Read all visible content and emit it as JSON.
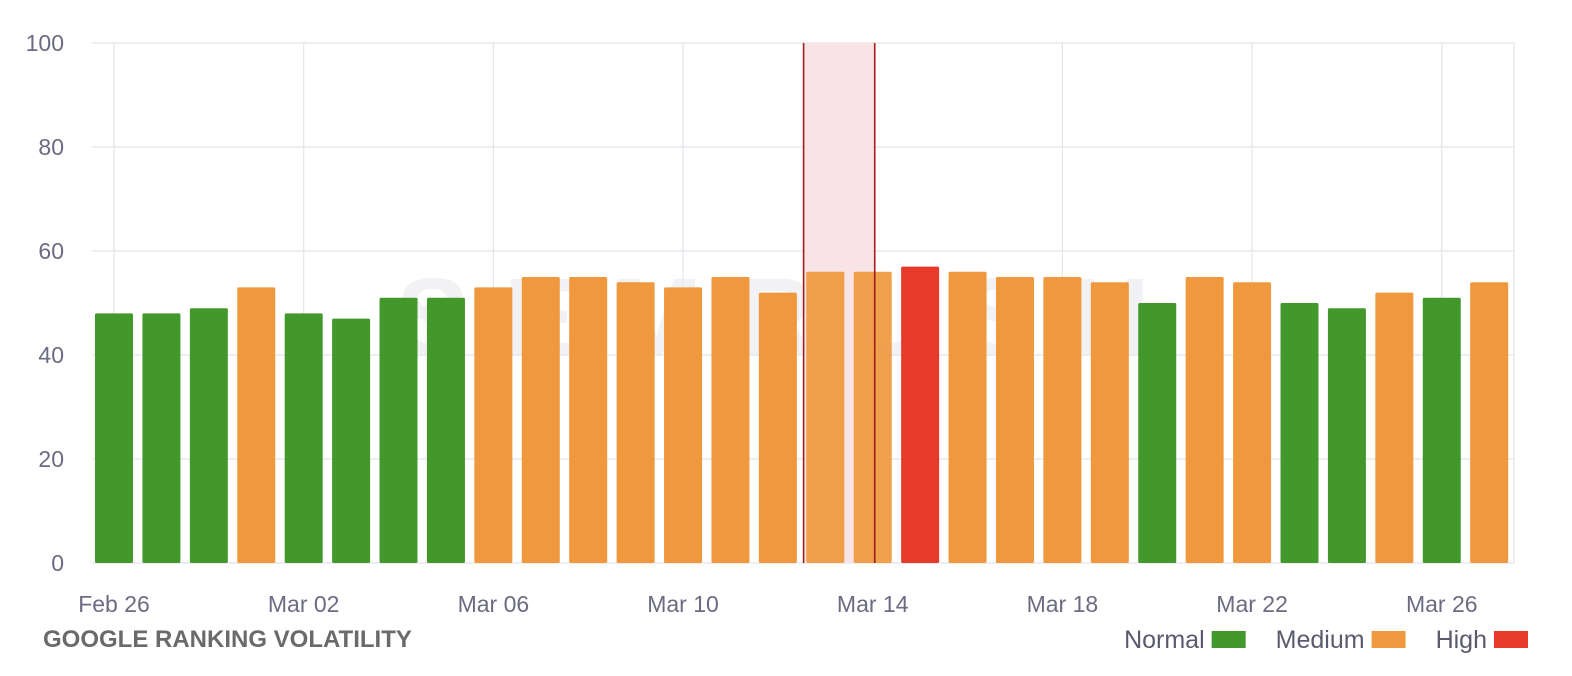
{
  "chart_data": {
    "type": "bar",
    "title": "GOOGLE RANKING VOLATILITY",
    "watermark": "SEMRUSH",
    "xlabel": "",
    "ylabel": "",
    "ylim": [
      0,
      100
    ],
    "y_ticks": [
      0,
      20,
      40,
      60,
      80,
      100
    ],
    "grid": true,
    "legend_position": "bottom-right",
    "x_tick_labels": [
      {
        "index": 0,
        "label": "Feb 26"
      },
      {
        "index": 4,
        "label": "Mar 02"
      },
      {
        "index": 8,
        "label": "Mar 06"
      },
      {
        "index": 12,
        "label": "Mar 10"
      },
      {
        "index": 16,
        "label": "Mar 14"
      },
      {
        "index": 20,
        "label": "Mar 18"
      },
      {
        "index": 24,
        "label": "Mar 22"
      },
      {
        "index": 28,
        "label": "Mar 26"
      }
    ],
    "categories": [
      "Feb 26",
      "Feb 27",
      "Feb 28",
      "Mar 01",
      "Mar 02",
      "Mar 03",
      "Mar 04",
      "Mar 05",
      "Mar 06",
      "Mar 07",
      "Mar 08",
      "Mar 09",
      "Mar 10",
      "Mar 11",
      "Mar 12",
      "Mar 13",
      "Mar 14",
      "Mar 15",
      "Mar 16",
      "Mar 17",
      "Mar 18",
      "Mar 19",
      "Mar 20",
      "Mar 21",
      "Mar 22",
      "Mar 23",
      "Mar 24",
      "Mar 25",
      "Mar 26",
      "Mar 27"
    ],
    "values": [
      48,
      48,
      49,
      53,
      48,
      47,
      51,
      51,
      53,
      55,
      55,
      54,
      53,
      55,
      52,
      56,
      56,
      57,
      56,
      55,
      55,
      54,
      50,
      55,
      54,
      50,
      49,
      52,
      51,
      54
    ],
    "levels": [
      "Normal",
      "Normal",
      "Normal",
      "Medium",
      "Normal",
      "Normal",
      "Normal",
      "Normal",
      "Medium",
      "Medium",
      "Medium",
      "Medium",
      "Medium",
      "Medium",
      "Medium",
      "Medium",
      "Medium",
      "High",
      "Medium",
      "Medium",
      "Medium",
      "Medium",
      "Normal",
      "Medium",
      "Medium",
      "Normal",
      "Normal",
      "Medium",
      "Normal",
      "Medium"
    ],
    "highlight_range": {
      "start": "Mar 13",
      "end": "Mar 14"
    },
    "legend": [
      {
        "label": "Normal",
        "color": "#43982b"
      },
      {
        "label": "Medium",
        "color": "#f0983d"
      },
      {
        "label": "High",
        "color": "#e73a2a"
      }
    ],
    "colors": {
      "Normal": "#43982b",
      "Medium": "#f0983d",
      "High": "#e73a2a",
      "highlight_fill": "#f8e4e6",
      "highlight_line": "#a11c1c",
      "grid": "#e4e4ea"
    }
  }
}
